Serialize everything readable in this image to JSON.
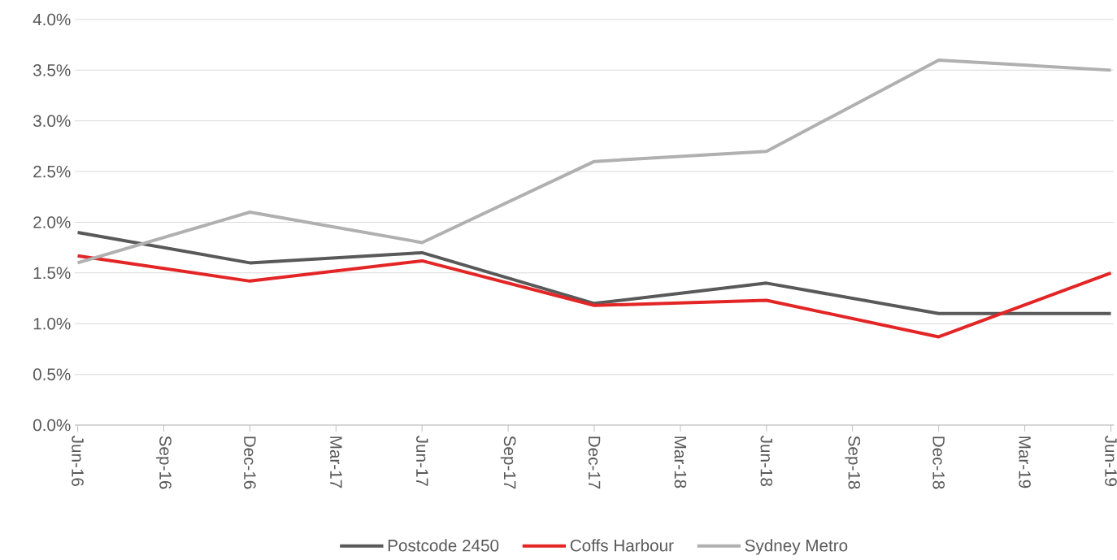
{
  "chart_data": {
    "type": "line",
    "x": [
      "2016-06",
      "2016-12",
      "2017-06",
      "2017-12",
      "2018-06",
      "2018-12",
      "2019-06"
    ],
    "series": [
      {
        "name": "Postcode 2450",
        "color": "#595959",
        "values": [
          1.9,
          1.6,
          1.7,
          1.2,
          1.4,
          1.1,
          1.1
        ]
      },
      {
        "name": "Coffs Harbour",
        "color": "#e32526",
        "values": [
          1.67,
          1.42,
          1.62,
          1.18,
          1.23,
          0.87,
          1.5
        ]
      },
      {
        "name": "Sydney Metro",
        "color": "#b0b0b0",
        "values": [
          1.6,
          2.1,
          1.8,
          2.6,
          2.7,
          3.6,
          3.5
        ]
      }
    ],
    "xlim": [
      "2016-06",
      "2019-06"
    ],
    "xticks": [
      {
        "value": "2016-06",
        "label": "Jun-16"
      },
      {
        "value": "2016-09",
        "label": "Sep-16"
      },
      {
        "value": "2016-12",
        "label": "Dec-16"
      },
      {
        "value": "2017-03",
        "label": "Mar-17"
      },
      {
        "value": "2017-06",
        "label": "Jun-17"
      },
      {
        "value": "2017-09",
        "label": "Sep-17"
      },
      {
        "value": "2017-12",
        "label": "Dec-17"
      },
      {
        "value": "2018-03",
        "label": "Mar-18"
      },
      {
        "value": "2018-06",
        "label": "Jun-18"
      },
      {
        "value": "2018-09",
        "label": "Sep-18"
      },
      {
        "value": "2018-12",
        "label": "Dec-18"
      },
      {
        "value": "2019-03",
        "label": "Mar-19"
      },
      {
        "value": "2019-06",
        "label": "Jun-19"
      }
    ],
    "ylim": [
      0,
      4
    ],
    "yticks": [
      {
        "value": 0,
        "label": "0.0%"
      },
      {
        "value": 0.5,
        "label": "0.5%"
      },
      {
        "value": 1,
        "label": "1.0%"
      },
      {
        "value": 1.5,
        "label": "1.5%"
      },
      {
        "value": 2,
        "label": "2.0%"
      },
      {
        "value": 2.5,
        "label": "2.5%"
      },
      {
        "value": 3,
        "label": "3.0%"
      },
      {
        "value": 3.5,
        "label": "3.5%"
      },
      {
        "value": 4,
        "label": "4.0%"
      }
    ],
    "grid": "y",
    "legend": "bottom",
    "marker": "none",
    "line_style": "solid"
  }
}
